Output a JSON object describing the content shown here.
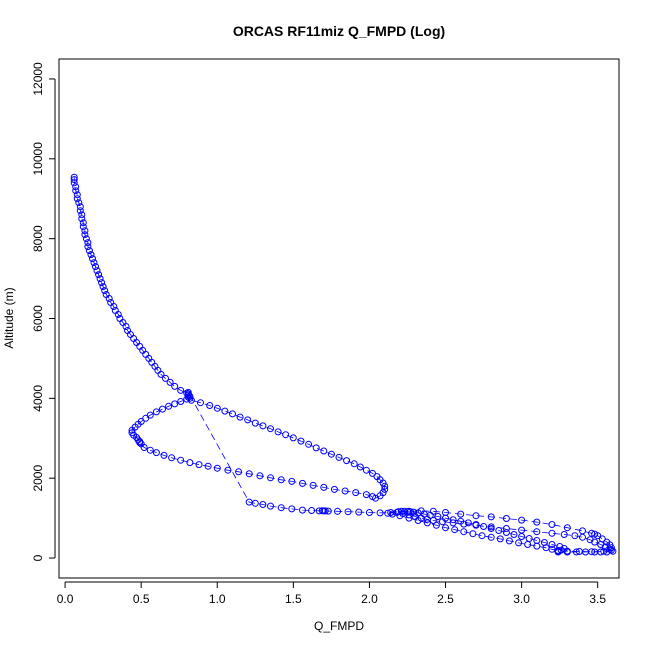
{
  "chart_data": {
    "type": "scatter",
    "title": "ORCAS RF11miz Q_FMPD (Log)",
    "xlabel": "Q_FMPD",
    "ylabel": "Altitude (m)",
    "xlim": [
      -0.04,
      3.64
    ],
    "ylim": [
      -500,
      12500
    ],
    "x_ticks": [
      "0.0",
      "0.5",
      "1.0",
      "1.5",
      "2.0",
      "2.5",
      "3.0",
      "3.5"
    ],
    "y_ticks": [
      "0",
      "2000",
      "4000",
      "6000",
      "8000",
      "10000",
      "12000"
    ],
    "series": [
      {
        "marker": "open-circle",
        "connected": true,
        "color": "#0000ff",
        "points": [
          [
            0.06,
            9540
          ],
          [
            0.06,
            9480
          ],
          [
            0.06,
            9400
          ],
          [
            0.07,
            9300
          ],
          [
            0.07,
            9200
          ],
          [
            0.08,
            9100
          ],
          [
            0.08,
            9000
          ],
          [
            0.09,
            8900
          ],
          [
            0.1,
            8800
          ],
          [
            0.1,
            8700
          ],
          [
            0.11,
            8600
          ],
          [
            0.11,
            8500
          ],
          [
            0.12,
            8400
          ],
          [
            0.12,
            8300
          ],
          [
            0.13,
            8200
          ],
          [
            0.13,
            8100
          ],
          [
            0.14,
            8000
          ],
          [
            0.15,
            7900
          ],
          [
            0.15,
            7800
          ],
          [
            0.16,
            7700
          ],
          [
            0.17,
            7600
          ],
          [
            0.18,
            7500
          ],
          [
            0.19,
            7400
          ],
          [
            0.2,
            7300
          ],
          [
            0.21,
            7200
          ],
          [
            0.22,
            7100
          ],
          [
            0.23,
            7000
          ],
          [
            0.24,
            6900
          ],
          [
            0.25,
            6800
          ],
          [
            0.26,
            6700
          ],
          [
            0.27,
            6600
          ],
          [
            0.29,
            6500
          ],
          [
            0.3,
            6400
          ],
          [
            0.32,
            6300
          ],
          [
            0.33,
            6200
          ],
          [
            0.35,
            6100
          ],
          [
            0.36,
            6000
          ],
          [
            0.38,
            5900
          ],
          [
            0.4,
            5800
          ],
          [
            0.41,
            5700
          ],
          [
            0.43,
            5600
          ],
          [
            0.45,
            5500
          ],
          [
            0.47,
            5400
          ],
          [
            0.49,
            5300
          ],
          [
            0.51,
            5200
          ],
          [
            0.53,
            5100
          ],
          [
            0.55,
            5000
          ],
          [
            0.57,
            4900
          ],
          [
            0.59,
            4800
          ],
          [
            0.61,
            4700
          ],
          [
            0.63,
            4600
          ],
          [
            0.66,
            4500
          ],
          [
            0.69,
            4400
          ],
          [
            0.72,
            4300
          ],
          [
            0.76,
            4200
          ],
          [
            0.8,
            4130
          ],
          [
            0.81,
            4080
          ],
          [
            0.81,
            4030
          ],
          [
            0.8,
            3980
          ],
          [
            0.76,
            3920
          ],
          [
            0.72,
            3860
          ],
          [
            0.68,
            3800
          ],
          [
            0.64,
            3730
          ],
          [
            0.6,
            3660
          ],
          [
            0.56,
            3580
          ],
          [
            0.53,
            3500
          ],
          [
            0.5,
            3420
          ],
          [
            0.48,
            3350
          ],
          [
            0.46,
            3280
          ],
          [
            0.44,
            3200
          ],
          [
            0.44,
            3140
          ],
          [
            0.45,
            3080
          ],
          [
            0.47,
            3020
          ],
          [
            0.48,
            2960
          ],
          [
            0.49,
            2920
          ],
          [
            0.49,
            2890
          ],
          [
            0.5,
            2860
          ],
          [
            0.52,
            2770
          ],
          [
            0.56,
            2700
          ],
          [
            0.6,
            2640
          ],
          [
            0.65,
            2570
          ],
          [
            0.7,
            2510
          ],
          [
            0.76,
            2450
          ],
          [
            0.82,
            2390
          ],
          [
            0.88,
            2340
          ],
          [
            0.94,
            2300
          ],
          [
            1.0,
            2250
          ],
          [
            1.07,
            2200
          ],
          [
            1.14,
            2160
          ],
          [
            1.21,
            2110
          ],
          [
            1.28,
            2060
          ],
          [
            1.35,
            2010
          ],
          [
            1.42,
            1960
          ],
          [
            1.49,
            1920
          ],
          [
            1.56,
            1870
          ],
          [
            1.63,
            1820
          ],
          [
            1.7,
            1770
          ],
          [
            1.77,
            1720
          ],
          [
            1.84,
            1680
          ],
          [
            1.91,
            1640
          ],
          [
            1.98,
            1590
          ],
          [
            2.02,
            1540
          ],
          [
            2.04,
            1500
          ],
          [
            2.07,
            1560
          ],
          [
            2.09,
            1640
          ],
          [
            2.1,
            1720
          ],
          [
            2.1,
            1800
          ],
          [
            2.09,
            1880
          ],
          [
            2.07,
            1960
          ],
          [
            2.05,
            2040
          ],
          [
            2.02,
            2120
          ],
          [
            1.98,
            2200
          ],
          [
            1.94,
            2280
          ],
          [
            1.9,
            2360
          ],
          [
            1.85,
            2440
          ],
          [
            1.8,
            2520
          ],
          [
            1.75,
            2600
          ],
          [
            1.7,
            2680
          ],
          [
            1.65,
            2760
          ],
          [
            1.6,
            2850
          ],
          [
            1.55,
            2930
          ],
          [
            1.5,
            3010
          ],
          [
            1.45,
            3090
          ],
          [
            1.4,
            3160
          ],
          [
            1.35,
            3240
          ],
          [
            1.3,
            3310
          ],
          [
            1.25,
            3380
          ],
          [
            1.2,
            3460
          ],
          [
            1.15,
            3530
          ],
          [
            1.1,
            3610
          ],
          [
            1.05,
            3680
          ],
          [
            1.0,
            3750
          ],
          [
            0.95,
            3820
          ],
          [
            0.89,
            3890
          ],
          [
            0.83,
            3950
          ],
          [
            0.82,
            4000
          ],
          [
            0.82,
            4050
          ],
          [
            0.81,
            4110
          ],
          [
            0.81,
            4150
          ],
          [
            1.21,
            1400
          ],
          [
            1.25,
            1370
          ],
          [
            1.3,
            1340
          ],
          [
            1.35,
            1300
          ],
          [
            1.42,
            1260
          ],
          [
            1.49,
            1230
          ],
          [
            1.56,
            1200
          ],
          [
            1.62,
            1190
          ],
          [
            1.67,
            1180
          ],
          [
            1.69,
            1185
          ],
          [
            1.7,
            1180
          ],
          [
            1.71,
            1180
          ],
          [
            1.73,
            1175
          ],
          [
            1.79,
            1170
          ],
          [
            1.86,
            1160
          ],
          [
            1.93,
            1150
          ],
          [
            2.0,
            1140
          ],
          [
            2.07,
            1130
          ],
          [
            2.14,
            1140
          ],
          [
            2.19,
            1160
          ],
          [
            2.21,
            1170
          ],
          [
            2.23,
            1170
          ],
          [
            2.25,
            1165
          ],
          [
            2.27,
            1160
          ],
          [
            2.29,
            1150
          ],
          [
            2.32,
            1130
          ],
          [
            2.36,
            1100
          ],
          [
            2.4,
            1070
          ],
          [
            2.45,
            1040
          ],
          [
            2.5,
            1000
          ],
          [
            2.55,
            960
          ],
          [
            2.6,
            920
          ],
          [
            2.65,
            880
          ],
          [
            2.7,
            840
          ],
          [
            2.75,
            790
          ],
          [
            2.8,
            740
          ],
          [
            2.85,
            690
          ],
          [
            2.9,
            640
          ],
          [
            2.95,
            590
          ],
          [
            3.0,
            540
          ],
          [
            3.05,
            490
          ],
          [
            3.1,
            440
          ],
          [
            3.15,
            390
          ],
          [
            3.2,
            340
          ],
          [
            3.25,
            290
          ],
          [
            3.28,
            240
          ],
          [
            3.26,
            200
          ],
          [
            3.24,
            170
          ],
          [
            3.24,
            150
          ],
          [
            3.3,
            150
          ],
          [
            3.36,
            150
          ],
          [
            3.42,
            150
          ],
          [
            3.48,
            150
          ],
          [
            3.52,
            150
          ],
          [
            3.56,
            150
          ],
          [
            3.6,
            170
          ],
          [
            3.58,
            220
          ],
          [
            3.55,
            280
          ],
          [
            3.52,
            340
          ],
          [
            3.48,
            400
          ],
          [
            3.45,
            460
          ],
          [
            3.4,
            520
          ],
          [
            3.35,
            560
          ],
          [
            3.28,
            590
          ],
          [
            3.2,
            620
          ],
          [
            3.1,
            660
          ],
          [
            3.0,
            700
          ],
          [
            2.9,
            740
          ],
          [
            2.8,
            780
          ],
          [
            2.7,
            820
          ],
          [
            2.62,
            850
          ],
          [
            2.55,
            880
          ],
          [
            2.48,
            910
          ],
          [
            2.42,
            940
          ],
          [
            2.38,
            970
          ],
          [
            2.34,
            1000
          ],
          [
            2.3,
            1040
          ],
          [
            2.26,
            1080
          ],
          [
            2.22,
            1120
          ],
          [
            2.19,
            1160
          ],
          [
            2.12,
            1120
          ],
          [
            2.18,
            1140
          ],
          [
            2.26,
            1170
          ],
          [
            2.34,
            1180
          ],
          [
            2.42,
            1170
          ],
          [
            2.5,
            1140
          ],
          [
            2.6,
            1100
          ],
          [
            2.7,
            1060
          ],
          [
            2.8,
            1030
          ],
          [
            2.9,
            990
          ],
          [
            3.0,
            950
          ],
          [
            3.1,
            900
          ],
          [
            3.2,
            840
          ],
          [
            3.3,
            760
          ],
          [
            3.4,
            680
          ],
          [
            3.46,
            620
          ],
          [
            3.48,
            600
          ],
          [
            3.5,
            560
          ],
          [
            3.53,
            480
          ],
          [
            3.56,
            400
          ],
          [
            3.58,
            330
          ],
          [
            3.59,
            260
          ],
          [
            3.59,
            200
          ],
          [
            3.54,
            170
          ],
          [
            3.46,
            160
          ],
          [
            3.38,
            165
          ],
          [
            3.3,
            175
          ],
          [
            3.24,
            190
          ],
          [
            3.2,
            220
          ],
          [
            3.16,
            260
          ],
          [
            3.1,
            300
          ],
          [
            3.04,
            340
          ],
          [
            2.98,
            380
          ],
          [
            2.92,
            430
          ],
          [
            2.86,
            480
          ],
          [
            2.8,
            520
          ],
          [
            2.74,
            560
          ],
          [
            2.68,
            610
          ],
          [
            2.62,
            660
          ],
          [
            2.56,
            710
          ],
          [
            2.5,
            760
          ],
          [
            2.44,
            820
          ],
          [
            2.38,
            880
          ],
          [
            2.32,
            940
          ],
          [
            2.26,
            1000
          ],
          [
            2.2,
            1060
          ],
          [
            2.15,
            1100
          ]
        ]
      }
    ]
  }
}
